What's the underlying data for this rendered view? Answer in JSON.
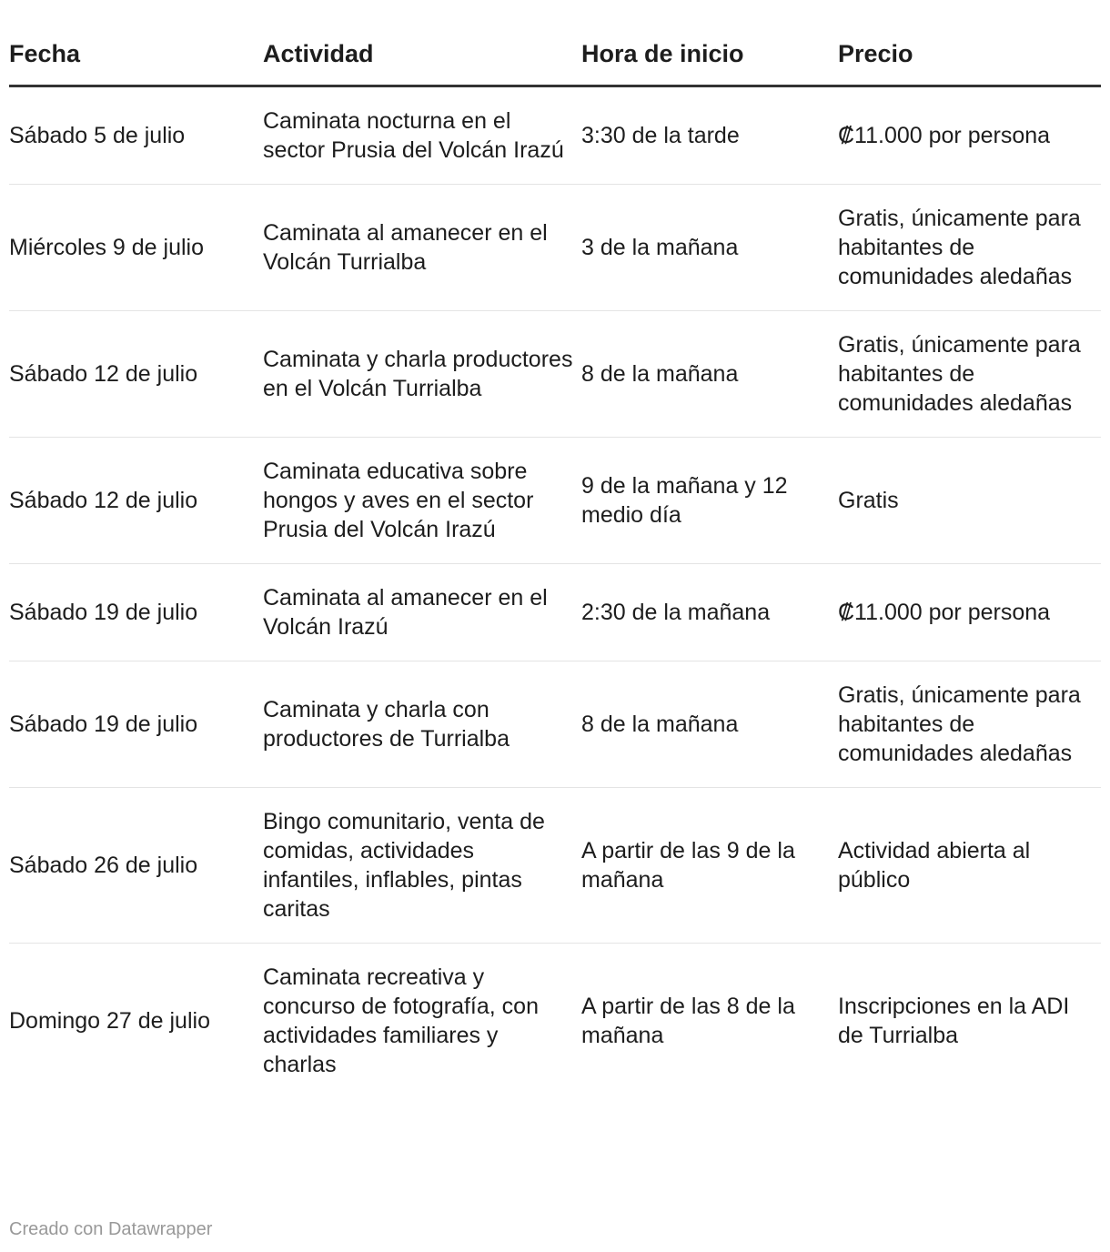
{
  "table": {
    "headers": [
      "Fecha",
      "Actividad",
      "Hora de inicio",
      "Precio"
    ],
    "rows": [
      [
        "Sábado 5 de julio",
        "Caminata nocturna en el sector Prusia del Volcán Irazú",
        "3:30 de la tarde",
        "₡11.000 por persona"
      ],
      [
        "Miércoles 9 de julio",
        "Caminata al amanecer en el Volcán Turrialba",
        "3 de la mañana",
        "Gratis, únicamente para habitantes de comunidades aledañas"
      ],
      [
        "Sábado 12 de julio",
        "Caminata y charla productores en el Volcán Turrialba",
        "8 de la mañana",
        "Gratis, únicamente para habitantes de comunidades aledañas"
      ],
      [
        "Sábado 12 de julio",
        "Caminata educativa sobre hongos y aves en el sector Prusia del Volcán Irazú",
        "9 de la mañana y 12 medio día",
        "Gratis"
      ],
      [
        "Sábado 19 de julio",
        "Caminata al amanecer en el Volcán Irazú",
        "2:30 de la mañana",
        "₡11.000 por persona"
      ],
      [
        "Sábado 19 de julio",
        "Caminata y charla con productores de Turrialba",
        "8 de la mañana",
        "Gratis, únicamente para habitantes de comunidades aledañas"
      ],
      [
        "Sábado 26 de julio",
        "Bingo comunitario, venta de comidas, actividades infantiles, inflables, pintas caritas",
        "A partir de las 9 de la mañana",
        "Actividad abierta al público"
      ],
      [
        "Domingo 27 de julio",
        "Caminata recreativa y concurso de fotografía, con actividades familiares y charlas",
        "A partir de las 8 de la mañana",
        "Inscripciones en la ADI de Turrialba"
      ]
    ]
  },
  "footer": "Creado con Datawrapper"
}
